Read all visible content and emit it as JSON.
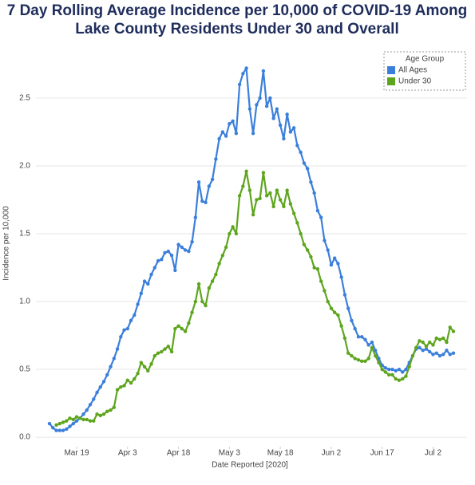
{
  "chart_data": {
    "type": "line",
    "title": [
      "7 Day Rolling Average Incidence per 10,000 of COVID-19 Among",
      "Lake County Residents Under 30 and Overall"
    ],
    "x_label": "Date Reported [2020]",
    "y_label": "Incidence per 10,000",
    "legend_title": "Age Group",
    "legend_position": "top-right",
    "grid": true,
    "markers": true,
    "xlim": [
      "2020-03-07",
      "2020-07-12"
    ],
    "xticks": [
      {
        "value": "2020-03-19",
        "label": "Mar 19"
      },
      {
        "value": "2020-04-03",
        "label": "Apr 3"
      },
      {
        "value": "2020-04-18",
        "label": "Apr 18"
      },
      {
        "value": "2020-05-03",
        "label": "May 3"
      },
      {
        "value": "2020-05-18",
        "label": "May 18"
      },
      {
        "value": "2020-06-02",
        "label": "Jun 2"
      },
      {
        "value": "2020-06-17",
        "label": "Jun 17"
      },
      {
        "value": "2020-07-02",
        "label": "Jul 2"
      }
    ],
    "ylim": [
      -0.07,
      2.87
    ],
    "yticks": [
      {
        "value": 0,
        "label": "0.0"
      },
      0.5,
      {
        "value": 1,
        "label": "1.0"
      },
      1.5,
      {
        "value": 2,
        "label": "2.0"
      },
      2.5
    ],
    "x": [
      "2020-03-11",
      "2020-03-12",
      "2020-03-13",
      "2020-03-14",
      "2020-03-15",
      "2020-03-16",
      "2020-03-17",
      "2020-03-18",
      "2020-03-19",
      "2020-03-20",
      "2020-03-21",
      "2020-03-22",
      "2020-03-23",
      "2020-03-24",
      "2020-03-25",
      "2020-03-26",
      "2020-03-27",
      "2020-03-28",
      "2020-03-29",
      "2020-03-30",
      "2020-03-31",
      "2020-04-01",
      "2020-04-02",
      "2020-04-03",
      "2020-04-04",
      "2020-04-05",
      "2020-04-06",
      "2020-04-07",
      "2020-04-08",
      "2020-04-09",
      "2020-04-10",
      "2020-04-11",
      "2020-04-12",
      "2020-04-13",
      "2020-04-14",
      "2020-04-15",
      "2020-04-16",
      "2020-04-17",
      "2020-04-18",
      "2020-04-19",
      "2020-04-20",
      "2020-04-21",
      "2020-04-22",
      "2020-04-23",
      "2020-04-24",
      "2020-04-25",
      "2020-04-26",
      "2020-04-27",
      "2020-04-28",
      "2020-04-29",
      "2020-04-30",
      "2020-05-01",
      "2020-05-02",
      "2020-05-03",
      "2020-05-04",
      "2020-05-05",
      "2020-05-06",
      "2020-05-07",
      "2020-05-08",
      "2020-05-09",
      "2020-05-10",
      "2020-05-11",
      "2020-05-12",
      "2020-05-13",
      "2020-05-14",
      "2020-05-15",
      "2020-05-16",
      "2020-05-17",
      "2020-05-18",
      "2020-05-19",
      "2020-05-20",
      "2020-05-21",
      "2020-05-22",
      "2020-05-23",
      "2020-05-24",
      "2020-05-25",
      "2020-05-26",
      "2020-05-27",
      "2020-05-28",
      "2020-05-29",
      "2020-05-30",
      "2020-05-31",
      "2020-06-01",
      "2020-06-02",
      "2020-06-03",
      "2020-06-04",
      "2020-06-05",
      "2020-06-06",
      "2020-06-07",
      "2020-06-08",
      "2020-06-09",
      "2020-06-10",
      "2020-06-11",
      "2020-06-12",
      "2020-06-13",
      "2020-06-14",
      "2020-06-15",
      "2020-06-16",
      "2020-06-17",
      "2020-06-18",
      "2020-06-19",
      "2020-06-20",
      "2020-06-21",
      "2020-06-22",
      "2020-06-23",
      "2020-06-24",
      "2020-06-25",
      "2020-06-26",
      "2020-06-27",
      "2020-06-28",
      "2020-06-29",
      "2020-06-30",
      "2020-07-01",
      "2020-07-02",
      "2020-07-03",
      "2020-07-04",
      "2020-07-05",
      "2020-07-06",
      "2020-07-07",
      "2020-07-08"
    ],
    "series": [
      {
        "name": "All Ages",
        "color": "#3b7fdb",
        "values": [
          0.1,
          0.07,
          0.05,
          0.05,
          0.05,
          0.06,
          0.08,
          0.1,
          0.12,
          0.14,
          0.17,
          0.2,
          0.24,
          0.28,
          0.33,
          0.37,
          0.41,
          0.46,
          0.52,
          0.58,
          0.65,
          0.74,
          0.79,
          0.8,
          0.86,
          0.9,
          0.98,
          1.06,
          1.15,
          1.13,
          1.2,
          1.25,
          1.3,
          1.31,
          1.36,
          1.37,
          1.34,
          1.23,
          1.42,
          1.4,
          1.38,
          1.37,
          1.44,
          1.62,
          1.88,
          1.74,
          1.73,
          1.85,
          1.9,
          2.05,
          2.2,
          2.25,
          2.22,
          2.31,
          2.33,
          2.24,
          2.6,
          2.68,
          2.72,
          2.42,
          2.24,
          2.45,
          2.5,
          2.7,
          2.44,
          2.5,
          2.35,
          2.42,
          2.3,
          2.2,
          2.38,
          2.25,
          2.28,
          2.15,
          2.1,
          2.02,
          1.98,
          1.88,
          1.8,
          1.67,
          1.62,
          1.45,
          1.38,
          1.27,
          1.32,
          1.28,
          1.18,
          1.05,
          0.95,
          0.86,
          0.8,
          0.74,
          0.74,
          0.72,
          0.68,
          0.7,
          0.64,
          0.58,
          0.53,
          0.51,
          0.5,
          0.5,
          0.49,
          0.5,
          0.48,
          0.5,
          0.55,
          0.6,
          0.65,
          0.66,
          0.64,
          0.65,
          0.63,
          0.61,
          0.62,
          0.6,
          0.61,
          0.64,
          0.61,
          0.62
        ]
      },
      {
        "name": "Under 30",
        "color": "#5ea51e",
        "values": [
          null,
          null,
          0.09,
          0.1,
          0.11,
          0.12,
          0.14,
          0.13,
          0.15,
          0.14,
          0.13,
          0.13,
          0.12,
          0.12,
          0.17,
          0.16,
          0.17,
          0.19,
          0.2,
          0.22,
          0.35,
          0.37,
          0.38,
          0.42,
          0.4,
          0.43,
          0.47,
          0.55,
          0.52,
          0.49,
          0.54,
          0.6,
          0.62,
          0.63,
          0.65,
          0.67,
          0.63,
          0.8,
          0.82,
          0.8,
          0.78,
          0.84,
          0.92,
          1.0,
          1.13,
          1.0,
          0.97,
          1.1,
          1.15,
          1.2,
          1.28,
          1.34,
          1.4,
          1.5,
          1.55,
          1.5,
          1.78,
          1.85,
          1.96,
          1.82,
          1.64,
          1.75,
          1.76,
          1.95,
          1.78,
          1.8,
          1.7,
          1.82,
          1.75,
          1.7,
          1.82,
          1.72,
          1.65,
          1.58,
          1.5,
          1.42,
          1.38,
          1.33,
          1.25,
          1.24,
          1.15,
          1.08,
          1.0,
          0.95,
          0.92,
          0.9,
          0.82,
          0.73,
          0.62,
          0.6,
          0.58,
          0.57,
          0.56,
          0.56,
          0.58,
          0.66,
          0.6,
          0.55,
          0.5,
          0.48,
          0.46,
          0.46,
          0.43,
          0.42,
          0.43,
          0.45,
          0.52,
          0.6,
          0.66,
          0.71,
          0.7,
          0.67,
          0.7,
          0.68,
          0.73,
          0.72,
          0.73,
          0.7,
          0.81,
          0.78
        ]
      }
    ]
  }
}
